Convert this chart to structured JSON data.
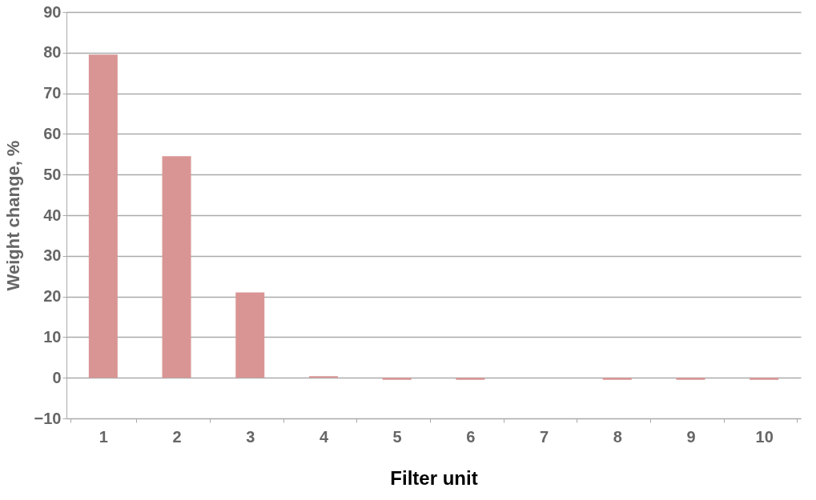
{
  "chart_data": {
    "type": "bar",
    "xlabel": "Filter unit",
    "ylabel": "Weight change, %",
    "categories": [
      "1",
      "2",
      "3",
      "4",
      "5",
      "6",
      "7",
      "8",
      "9",
      "10"
    ],
    "values": [
      79.5,
      54.5,
      21,
      0.4,
      -0.5,
      -0.5,
      0,
      -0.5,
      -0.5,
      -0.5
    ],
    "color": "#d99594",
    "ylim": [
      -10,
      90
    ],
    "yticks": [
      -10,
      0,
      10,
      20,
      30,
      40,
      50,
      60,
      70,
      80,
      90
    ],
    "grid": "y"
  }
}
